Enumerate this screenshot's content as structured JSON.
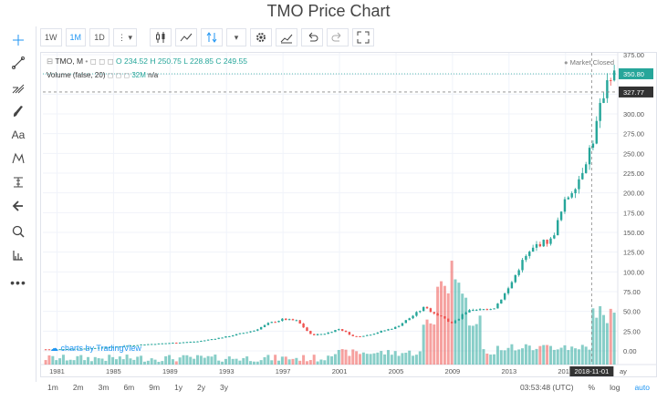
{
  "title": "TMO Price Chart",
  "toolbar": {
    "intervals": [
      "1W",
      "1M",
      "1D"
    ],
    "active_interval": "1M"
  },
  "legend": {
    "symbol": "TMO, M",
    "o": "O 234.52",
    "h": "H 250.75",
    "l": "L 228.85",
    "c": "C 249.55",
    "volume_label": "Volume (false, 20)",
    "volume_value": "32M",
    "volume_na": "n/a",
    "market_status": "Market Closed"
  },
  "watermark": "charts by TradingView",
  "price_axis": {
    "labels": [
      "375.00",
      "350.00",
      "325.00",
      "300.00",
      "275.00",
      "250.00",
      "225.00",
      "200.00",
      "175.00",
      "150.00",
      "125.00",
      "100.00",
      "75.00",
      "50.00",
      "25.00",
      "0.00"
    ],
    "badge_top": "350.80",
    "badge_second": "327.77"
  },
  "time_axis": {
    "labels": [
      "1981",
      "1985",
      "1989",
      "1993",
      "1997",
      "2001",
      "2005",
      "2009",
      "2013",
      "2017"
    ],
    "crosshair_label": "2018-11-01",
    "edge_label": "ay"
  },
  "bottom_bar": {
    "ranges": [
      "1m",
      "2m",
      "3m",
      "6m",
      "9m",
      "1y",
      "2y",
      "3y"
    ],
    "clock": "03:53:48 (UTC)",
    "percent": "%",
    "log": "log",
    "auto": "auto"
  },
  "chart_data": {
    "type": "line",
    "title": "TMO Price Chart",
    "ylim": [
      0,
      375
    ],
    "series": [
      {
        "name": "TMO",
        "x": [
          1981,
          1983,
          1985,
          1987,
          1989,
          1991,
          1993,
          1995,
          1996,
          1997,
          1998,
          1999,
          2000,
          2001,
          2002,
          2003,
          2004,
          2005,
          2006,
          2007,
          2008,
          2009,
          2010,
          2011,
          2012,
          2013,
          2014,
          2015,
          2016,
          2017,
          2018,
          2019,
          2020
        ],
        "values": [
          2,
          3,
          5,
          8,
          10,
          12,
          18,
          26,
          35,
          40,
          38,
          20,
          22,
          28,
          18,
          20,
          25,
          30,
          42,
          55,
          45,
          35,
          50,
          52,
          55,
          80,
          115,
          135,
          140,
          190,
          220,
          270,
          350
        ]
      }
    ],
    "volume_peaks_years": [
      2008,
      2009,
      2010,
      2020
    ]
  },
  "colors": {
    "up": "#26a69a",
    "down": "#ef5350",
    "accent": "#2196f3",
    "axis_badge": "#26a69a"
  }
}
